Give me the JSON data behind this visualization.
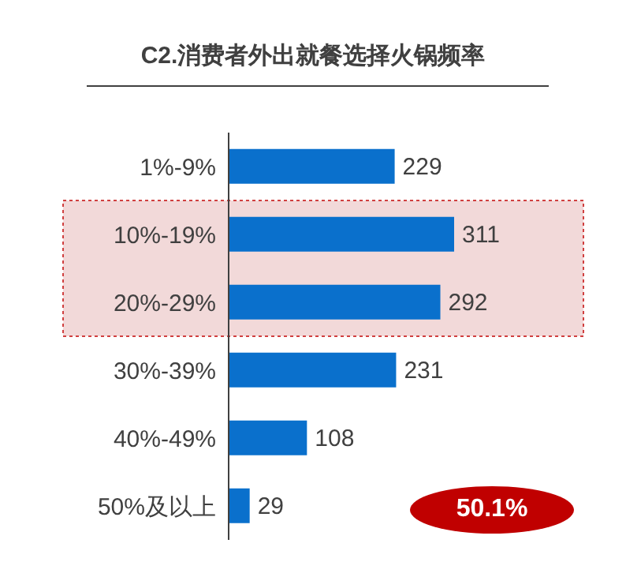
{
  "chart_data": {
    "type": "bar",
    "orientation": "horizontal",
    "title": "C2.消费者外出就餐选择火锅频率",
    "categories": [
      "1%-9%",
      "10%-19%",
      "20%-29%",
      "30%-39%",
      "40%-49%",
      "50%及以上"
    ],
    "values": [
      229,
      311,
      292,
      231,
      108,
      29
    ],
    "color": "#0a70cc",
    "data_labels": true,
    "bands": [
      {
        "axis": "y",
        "from": "10%-19%",
        "to": "20%-29%",
        "color": "#f2d9d9"
      }
    ],
    "annotations": [
      "50.1%"
    ]
  }
}
